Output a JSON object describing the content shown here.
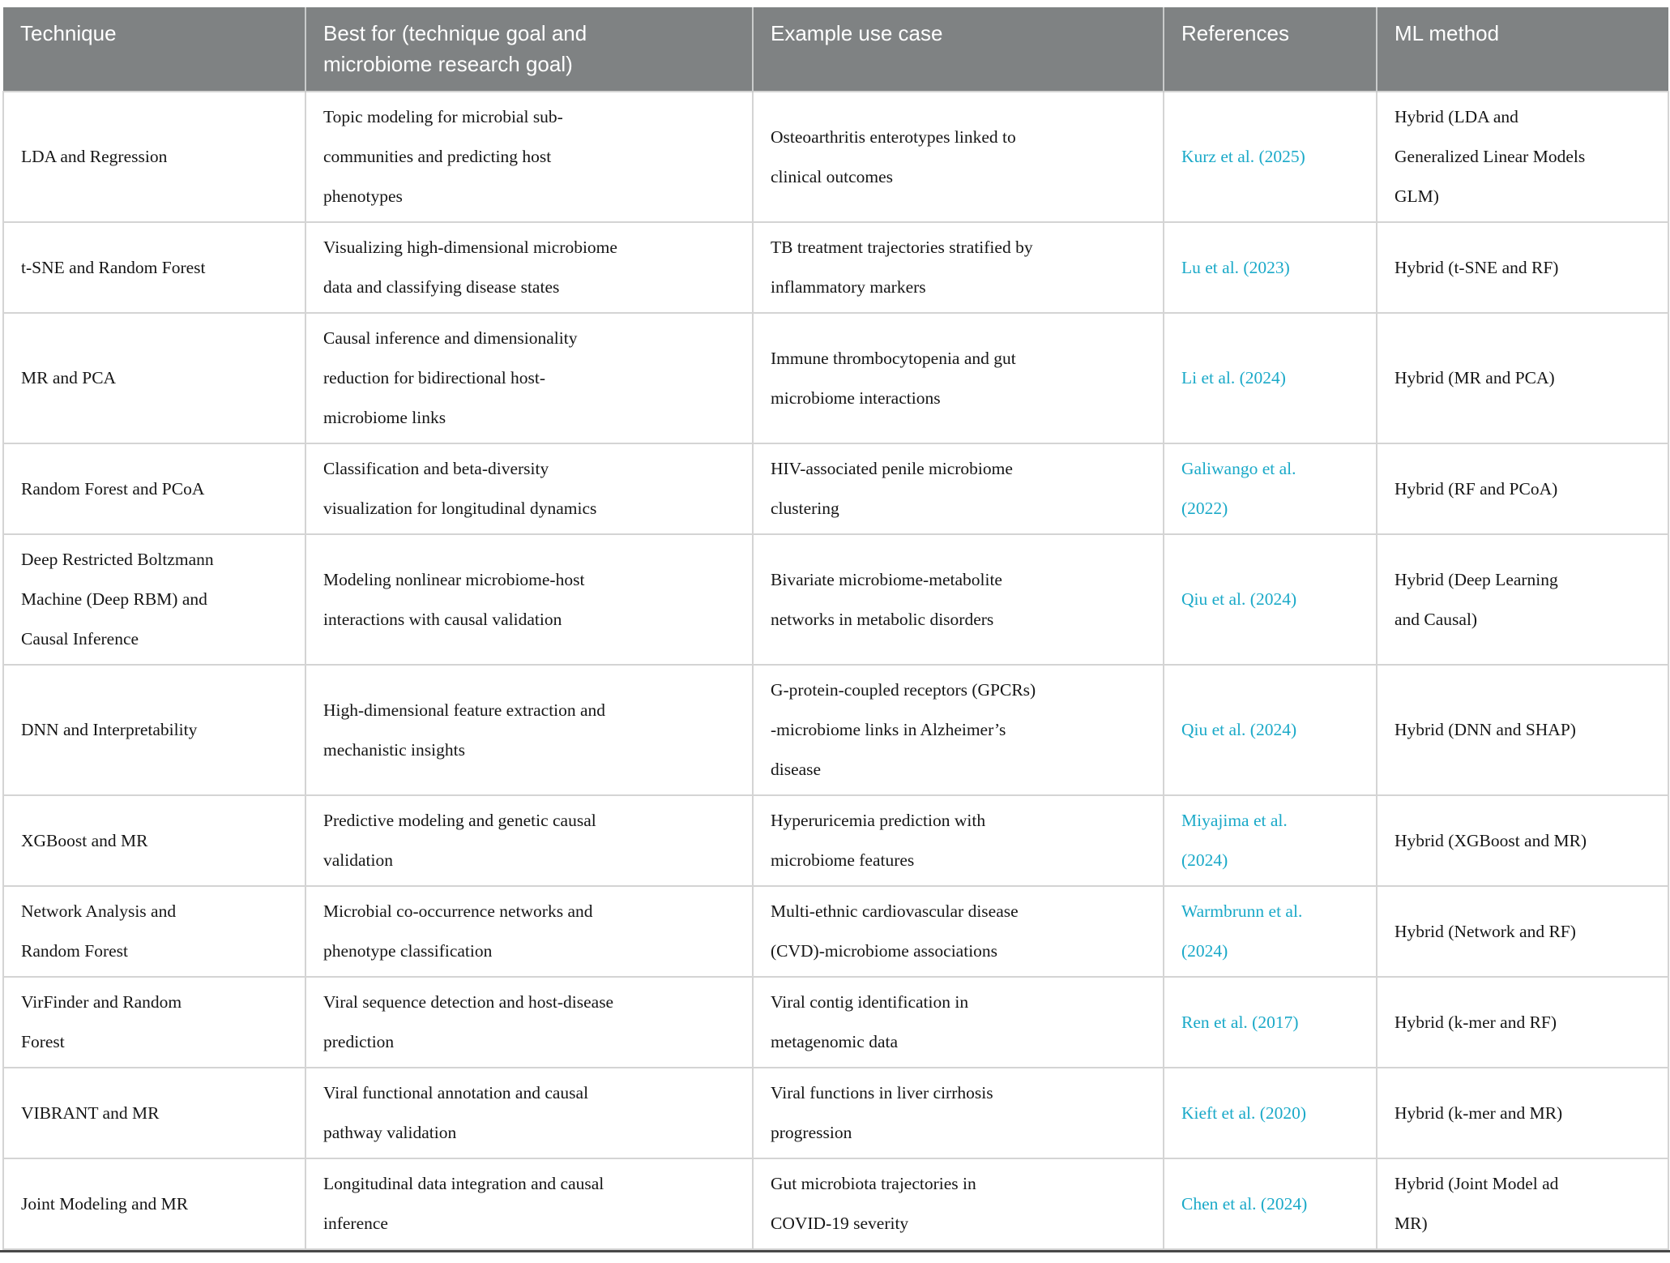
{
  "colors": {
    "header_background": "#7f8283",
    "header_text": "#ffffff",
    "body_text": "#161616",
    "reference_link": "#1aa9c8",
    "grid_line": "#d4d4d4",
    "bottom_rule": "#484848"
  },
  "table": {
    "columns": [
      {
        "label": "Technique"
      },
      {
        "label": "Best for (technique goal and\nmicrobiome research goal)"
      },
      {
        "label": "Example use case"
      },
      {
        "label": "References"
      },
      {
        "label": "ML method"
      }
    ],
    "rows": [
      {
        "technique": "LDA and Regression",
        "best_for": "Topic modeling for microbial sub-\ncommunities and predicting host\nphenotypes",
        "example": "Osteoarthritis enterotypes linked to\nclinical outcomes",
        "reference": "Kurz et al. (2025)",
        "ml_method": "Hybrid (LDA and\nGeneralized Linear Models\nGLM)"
      },
      {
        "technique": "t-SNE and Random Forest",
        "best_for": "Visualizing high-dimensional microbiome\ndata and classifying disease states",
        "example": "TB treatment trajectories stratified by\ninflammatory markers",
        "reference": "Lu et al. (2023)",
        "ml_method": "Hybrid (t-SNE and RF)"
      },
      {
        "technique": "MR and PCA",
        "best_for": "Causal inference and dimensionality\nreduction for bidirectional host-\nmicrobiome links",
        "example": "Immune thrombocytopenia and gut\nmicrobiome interactions",
        "reference": "Li et al. (2024)",
        "ml_method": "Hybrid (MR and PCA)"
      },
      {
        "technique": "Random Forest and PCoA",
        "best_for": "Classification and beta-diversity\nvisualization for longitudinal dynamics",
        "example": "HIV-associated penile microbiome\nclustering",
        "reference": "Galiwango et al.\n(2022)",
        "ml_method": "Hybrid (RF and PCoA)"
      },
      {
        "technique": "Deep Restricted Boltzmann\nMachine (Deep RBM) and\nCausal Inference",
        "best_for": "Modeling nonlinear microbiome-host\ninteractions with causal validation",
        "example": "Bivariate microbiome-metabolite\nnetworks in metabolic disorders",
        "reference": "Qiu et al. (2024)",
        "ml_method": "Hybrid (Deep Learning\nand Causal)"
      },
      {
        "technique": "DNN and Interpretability",
        "best_for": "High-dimensional feature extraction and\nmechanistic insights",
        "example": "G-protein-coupled receptors (GPCRs)\n-microbiome links in Alzheimer’s\ndisease",
        "reference": "Qiu et al. (2024)",
        "ml_method": "Hybrid (DNN and SHAP)"
      },
      {
        "technique": "XGBoost and MR",
        "best_for": "Predictive modeling and genetic causal\nvalidation",
        "example": "Hyperuricemia prediction with\nmicrobiome features",
        "reference": "Miyajima et al.\n(2024)",
        "ml_method": "Hybrid (XGBoost and MR)"
      },
      {
        "technique": "Network Analysis and\nRandom Forest",
        "best_for": "Microbial co-occurrence networks and\nphenotype classification",
        "example": "Multi-ethnic cardiovascular disease\n(CVD)-microbiome associations",
        "reference": "Warmbrunn et al.\n(2024)",
        "ml_method": "Hybrid (Network and RF)"
      },
      {
        "technique": "VirFinder and Random\nForest",
        "best_for": "Viral sequence detection and host-disease\nprediction",
        "example": "Viral contig identification in\nmetagenomic data",
        "reference": "Ren et al. (2017)",
        "ml_method": "Hybrid (k-mer and RF)"
      },
      {
        "technique": "VIBRANT and MR",
        "best_for": "Viral functional annotation and causal\npathway validation",
        "example": "Viral functions in liver cirrhosis\nprogression",
        "reference": "Kieft et al. (2020)",
        "ml_method": "Hybrid (k-mer and MR)"
      },
      {
        "technique": "Joint Modeling and MR",
        "best_for": "Longitudinal data integration and causal\ninference",
        "example": "Gut microbiota trajectories in\nCOVID-19 severity",
        "reference": "Chen et al. (2024)",
        "ml_method": "Hybrid (Joint Model ad\nMR)"
      }
    ]
  }
}
